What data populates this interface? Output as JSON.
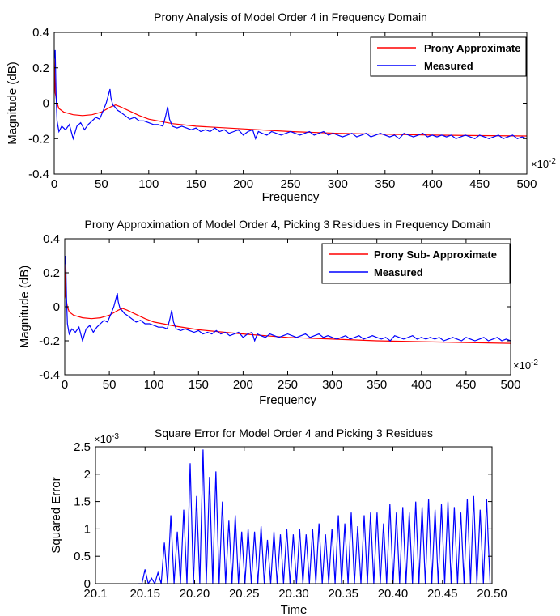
{
  "chart_data": [
    {
      "type": "line",
      "title": "Prony Analysis of Model Order 4 in Frequency Domain",
      "xlabel": "Frequency",
      "ylabel": "Magnitude (dB)",
      "x_multiplier": "×10",
      "x_multiplier_exp": "-2",
      "xlim": [
        0,
        500
      ],
      "ylim": [
        -0.4,
        0.4
      ],
      "xticks": [
        0,
        50,
        100,
        150,
        200,
        250,
        300,
        350,
        400,
        450,
        500
      ],
      "xtick_labels": [
        "0",
        "50",
        "100",
        "150",
        "200",
        "250",
        "300",
        "350",
        "400",
        "450",
        "500"
      ],
      "yticks": [
        -0.4,
        -0.2,
        0,
        0.2,
        0.4
      ],
      "ytick_labels": [
        "-0.4",
        "-0.2",
        "0",
        "0.2",
        "0.4"
      ],
      "legend_position": "top-right",
      "grid": false,
      "series": [
        {
          "name": "Prony Approximate",
          "color": "#ff0000",
          "x": [
            0,
            1,
            3,
            5,
            10,
            20,
            30,
            40,
            50,
            55,
            60,
            65,
            70,
            80,
            90,
            100,
            125,
            150,
            200,
            250,
            300,
            350,
            400,
            450,
            500
          ],
          "y": [
            0.27,
            0.06,
            0.0,
            -0.03,
            -0.05,
            -0.065,
            -0.07,
            -0.065,
            -0.05,
            -0.035,
            -0.02,
            -0.01,
            -0.02,
            -0.045,
            -0.07,
            -0.09,
            -0.115,
            -0.13,
            -0.145,
            -0.16,
            -0.17,
            -0.175,
            -0.18,
            -0.183,
            -0.185
          ]
        },
        {
          "name": "Measured",
          "color": "#0000ff",
          "x": [
            0,
            1,
            2,
            3,
            5,
            8,
            12,
            16,
            20,
            24,
            28,
            32,
            36,
            40,
            44,
            48,
            52,
            55,
            57,
            59,
            60,
            62,
            64,
            67,
            70,
            75,
            80,
            85,
            90,
            95,
            100,
            105,
            110,
            115,
            118,
            120,
            122,
            125,
            130,
            135,
            140,
            145,
            150,
            155,
            160,
            165,
            170,
            175,
            180,
            185,
            190,
            195,
            200,
            205,
            210,
            213,
            216,
            220,
            225,
            230,
            235,
            240,
            245,
            250,
            255,
            260,
            265,
            270,
            275,
            280,
            285,
            290,
            295,
            300,
            305,
            310,
            315,
            320,
            325,
            330,
            335,
            340,
            345,
            350,
            355,
            360,
            365,
            370,
            375,
            380,
            385,
            390,
            395,
            400,
            405,
            410,
            415,
            420,
            425,
            430,
            435,
            440,
            445,
            450,
            455,
            460,
            465,
            470,
            475,
            480,
            485,
            490,
            495,
            500
          ],
          "y": [
            0.25,
            0.3,
            0.05,
            -0.1,
            -0.16,
            -0.13,
            -0.15,
            -0.12,
            -0.2,
            -0.13,
            -0.11,
            -0.15,
            -0.12,
            -0.1,
            -0.08,
            -0.09,
            -0.04,
            0.0,
            0.04,
            0.08,
            0.03,
            -0.01,
            -0.02,
            -0.04,
            -0.05,
            -0.07,
            -0.09,
            -0.08,
            -0.1,
            -0.1,
            -0.11,
            -0.12,
            -0.12,
            -0.13,
            -0.07,
            -0.02,
            -0.09,
            -0.13,
            -0.14,
            -0.13,
            -0.14,
            -0.15,
            -0.14,
            -0.16,
            -0.15,
            -0.16,
            -0.14,
            -0.16,
            -0.15,
            -0.17,
            -0.16,
            -0.15,
            -0.18,
            -0.16,
            -0.15,
            -0.2,
            -0.16,
            -0.17,
            -0.18,
            -0.16,
            -0.17,
            -0.18,
            -0.17,
            -0.16,
            -0.17,
            -0.18,
            -0.17,
            -0.16,
            -0.18,
            -0.17,
            -0.16,
            -0.18,
            -0.17,
            -0.18,
            -0.19,
            -0.18,
            -0.17,
            -0.19,
            -0.18,
            -0.17,
            -0.19,
            -0.18,
            -0.17,
            -0.18,
            -0.19,
            -0.18,
            -0.2,
            -0.17,
            -0.18,
            -0.19,
            -0.18,
            -0.17,
            -0.19,
            -0.18,
            -0.19,
            -0.18,
            -0.19,
            -0.18,
            -0.2,
            -0.19,
            -0.18,
            -0.19,
            -0.2,
            -0.18,
            -0.19,
            -0.2,
            -0.19,
            -0.18,
            -0.2,
            -0.19,
            -0.18,
            -0.2,
            -0.19,
            -0.2
          ]
        }
      ]
    },
    {
      "type": "line",
      "title": "Prony Approximation of Model Order 4, Picking 3 Residues in Frequency Domain",
      "xlabel": "Frequency",
      "ylabel": "Magnitude (dB)",
      "x_multiplier": "×10",
      "x_multiplier_exp": "-2",
      "xlim": [
        0,
        500
      ],
      "ylim": [
        -0.4,
        0.4
      ],
      "xticks": [
        0,
        50,
        100,
        150,
        200,
        250,
        300,
        350,
        400,
        450,
        500
      ],
      "xtick_labels": [
        "0",
        "50",
        "100",
        "150",
        "200",
        "250",
        "300",
        "350",
        "400",
        "450",
        "500"
      ],
      "yticks": [
        -0.4,
        -0.2,
        0,
        0.2,
        0.4
      ],
      "ytick_labels": [
        "-0.4",
        "-0.2",
        "0",
        "0.2",
        "0.4"
      ],
      "legend_position": "top-right",
      "grid": false,
      "series": [
        {
          "name": "Prony Sub- Approximate",
          "color": "#ff0000",
          "x": [
            0,
            1,
            3,
            5,
            10,
            20,
            30,
            40,
            50,
            55,
            60,
            65,
            70,
            80,
            90,
            100,
            125,
            150,
            200,
            250,
            300,
            350,
            400,
            450,
            500
          ],
          "y": [
            0.27,
            0.06,
            0.0,
            -0.03,
            -0.05,
            -0.065,
            -0.07,
            -0.065,
            -0.05,
            -0.035,
            -0.02,
            -0.01,
            -0.02,
            -0.045,
            -0.07,
            -0.09,
            -0.115,
            -0.135,
            -0.16,
            -0.18,
            -0.19,
            -0.2,
            -0.205,
            -0.21,
            -0.215
          ]
        },
        {
          "name": "Measured",
          "color": "#0000ff",
          "x": [
            0,
            1,
            2,
            3,
            5,
            8,
            12,
            16,
            20,
            24,
            28,
            32,
            36,
            40,
            44,
            48,
            52,
            55,
            57,
            59,
            60,
            62,
            64,
            67,
            70,
            75,
            80,
            85,
            90,
            95,
            100,
            105,
            110,
            115,
            118,
            120,
            122,
            125,
            130,
            135,
            140,
            145,
            150,
            155,
            160,
            165,
            170,
            175,
            180,
            185,
            190,
            195,
            200,
            205,
            210,
            213,
            216,
            220,
            225,
            230,
            235,
            240,
            245,
            250,
            255,
            260,
            265,
            270,
            275,
            280,
            285,
            290,
            295,
            300,
            305,
            310,
            315,
            320,
            325,
            330,
            335,
            340,
            345,
            350,
            355,
            360,
            365,
            370,
            375,
            380,
            385,
            390,
            395,
            400,
            405,
            410,
            415,
            420,
            425,
            430,
            435,
            440,
            445,
            450,
            455,
            460,
            465,
            470,
            475,
            480,
            485,
            490,
            495,
            500
          ],
          "y": [
            0.25,
            0.3,
            0.05,
            -0.1,
            -0.16,
            -0.13,
            -0.15,
            -0.12,
            -0.2,
            -0.13,
            -0.11,
            -0.15,
            -0.12,
            -0.1,
            -0.08,
            -0.09,
            -0.04,
            0.0,
            0.04,
            0.08,
            0.03,
            -0.01,
            -0.02,
            -0.04,
            -0.05,
            -0.07,
            -0.09,
            -0.08,
            -0.1,
            -0.1,
            -0.11,
            -0.12,
            -0.12,
            -0.13,
            -0.07,
            -0.02,
            -0.09,
            -0.13,
            -0.14,
            -0.13,
            -0.14,
            -0.15,
            -0.14,
            -0.16,
            -0.15,
            -0.16,
            -0.14,
            -0.16,
            -0.15,
            -0.17,
            -0.16,
            -0.15,
            -0.18,
            -0.16,
            -0.15,
            -0.2,
            -0.16,
            -0.17,
            -0.18,
            -0.16,
            -0.17,
            -0.18,
            -0.17,
            -0.16,
            -0.17,
            -0.18,
            -0.17,
            -0.16,
            -0.18,
            -0.17,
            -0.16,
            -0.18,
            -0.17,
            -0.18,
            -0.19,
            -0.18,
            -0.17,
            -0.19,
            -0.18,
            -0.17,
            -0.19,
            -0.18,
            -0.17,
            -0.18,
            -0.19,
            -0.18,
            -0.2,
            -0.17,
            -0.18,
            -0.19,
            -0.18,
            -0.17,
            -0.19,
            -0.18,
            -0.19,
            -0.18,
            -0.19,
            -0.18,
            -0.2,
            -0.19,
            -0.18,
            -0.19,
            -0.2,
            -0.18,
            -0.19,
            -0.2,
            -0.19,
            -0.18,
            -0.2,
            -0.19,
            -0.18,
            -0.2,
            -0.19,
            -0.2
          ]
        }
      ]
    },
    {
      "type": "line",
      "title": "Square Error for Model Order 4 and Picking 3 Residues",
      "xlabel": "Time",
      "ylabel": "Squared Error",
      "y_multiplier": "×10",
      "y_multiplier_exp": "-3",
      "xlim": [
        20.1,
        20.5
      ],
      "ylim": [
        0,
        2.5
      ],
      "xticks": [
        20.1,
        20.15,
        20.2,
        20.25,
        20.3,
        20.35,
        20.4,
        20.45,
        20.5
      ],
      "xtick_labels": [
        "20.1",
        "20.15",
        "20.20",
        "20.25",
        "20.30",
        "20.35",
        "20.40",
        "20.45",
        "20.50"
      ],
      "yticks": [
        0,
        0.5,
        1,
        1.5,
        2,
        2.5
      ],
      "ytick_labels": [
        "0",
        "0.5",
        "1",
        "1.5",
        "2",
        "2.5"
      ],
      "grid": false,
      "series": [
        {
          "color": "#0000ff",
          "x_start": 20.15,
          "x_end": 20.498,
          "peak_spacing": 0.0065,
          "peaks": [
            0.26,
            0.1,
            0.2,
            0.75,
            1.25,
            0.95,
            1.35,
            2.2,
            1.6,
            2.45,
            1.95,
            2.05,
            1.5,
            1.15,
            1.25,
            0.95,
            1.0,
            0.95,
            1.05,
            0.8,
            0.95,
            0.9,
            1.0,
            0.9,
            1.0,
            0.9,
            1.0,
            1.1,
            0.9,
            1.0,
            1.25,
            1.1,
            1.3,
            1.05,
            1.25,
            1.3,
            1.3,
            1.1,
            1.45,
            1.3,
            1.4,
            1.3,
            1.5,
            1.4,
            1.55,
            1.35,
            1.45,
            1.5,
            1.4,
            1.3,
            1.55,
            1.6,
            1.35,
            1.55
          ]
        }
      ]
    }
  ]
}
